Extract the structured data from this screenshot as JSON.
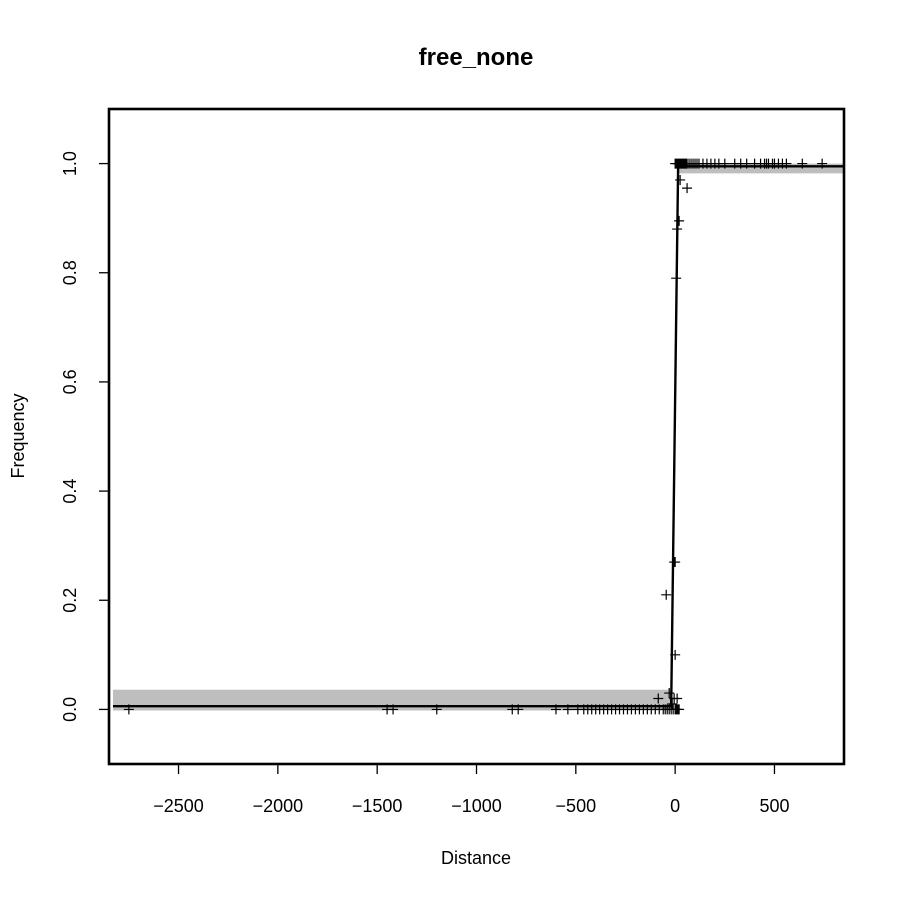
{
  "chart_data": {
    "type": "scatter",
    "title": "free_none",
    "xlabel": "Distance",
    "ylabel": "Frequency",
    "xlim": [
      -2850,
      850
    ],
    "ylim": [
      -0.1,
      1.1
    ],
    "x_ticks": [
      -2500,
      -2000,
      -1500,
      -1000,
      -500,
      0,
      500
    ],
    "x_tick_labels": [
      "−2500",
      "−2000",
      "−1500",
      "−1000",
      "−500",
      "0",
      "500"
    ],
    "y_ticks": [
      0.0,
      0.2,
      0.4,
      0.6,
      0.8,
      1.0
    ],
    "y_tick_labels": [
      "0.0",
      "0.2",
      "0.4",
      "0.6",
      "0.8",
      "1.0"
    ],
    "grid": false,
    "point_marker": "+",
    "points": [
      [
        -2750,
        0.0
      ],
      [
        -1450,
        0.0
      ],
      [
        -1420,
        0.0
      ],
      [
        -1200,
        0.0
      ],
      [
        -820,
        0.0
      ],
      [
        -790,
        0.0
      ],
      [
        -600,
        0.0
      ],
      [
        -540,
        0.0
      ],
      [
        -490,
        0.0
      ],
      [
        -460,
        0.0
      ],
      [
        -440,
        0.0
      ],
      [
        -420,
        0.0
      ],
      [
        -400,
        0.0
      ],
      [
        -380,
        0.0
      ],
      [
        -360,
        0.0
      ],
      [
        -340,
        0.0
      ],
      [
        -320,
        0.0
      ],
      [
        -300,
        0.0
      ],
      [
        -280,
        0.0
      ],
      [
        -260,
        0.0
      ],
      [
        -240,
        0.0
      ],
      [
        -220,
        0.0
      ],
      [
        -200,
        0.0
      ],
      [
        -180,
        0.0
      ],
      [
        -160,
        0.0
      ],
      [
        -140,
        0.0
      ],
      [
        -120,
        0.0
      ],
      [
        -100,
        0.0
      ],
      [
        -80,
        0.0
      ],
      [
        -60,
        0.0
      ],
      [
        -50,
        0.0
      ],
      [
        -40,
        0.0
      ],
      [
        -30,
        0.0
      ],
      [
        -20,
        0.0
      ],
      [
        -10,
        0.0
      ],
      [
        0,
        0.0
      ],
      [
        5,
        0.0
      ],
      [
        10,
        0.0
      ],
      [
        15,
        0.0
      ],
      [
        20,
        0.0
      ],
      [
        -85,
        0.02
      ],
      [
        -30,
        0.03
      ],
      [
        -15,
        0.01
      ],
      [
        -5,
        0.02
      ],
      [
        10,
        0.02
      ],
      [
        -45,
        0.21
      ],
      [
        -5,
        0.27
      ],
      [
        0,
        0.27
      ],
      [
        0,
        0.1
      ],
      [
        5,
        0.79
      ],
      [
        10,
        0.88
      ],
      [
        20,
        0.895
      ],
      [
        25,
        0.97
      ],
      [
        60,
        0.955
      ],
      [
        0,
        1.0
      ],
      [
        5,
        1.0
      ],
      [
        10,
        1.0
      ],
      [
        15,
        1.0
      ],
      [
        20,
        1.0
      ],
      [
        25,
        1.0
      ],
      [
        30,
        1.0
      ],
      [
        35,
        1.0
      ],
      [
        40,
        1.0
      ],
      [
        45,
        1.0
      ],
      [
        50,
        1.0
      ],
      [
        55,
        1.0
      ],
      [
        60,
        1.0
      ],
      [
        70,
        1.0
      ],
      [
        80,
        1.0
      ],
      [
        90,
        1.0
      ],
      [
        100,
        1.0
      ],
      [
        110,
        1.0
      ],
      [
        120,
        1.0
      ],
      [
        140,
        1.0
      ],
      [
        160,
        1.0
      ],
      [
        180,
        1.0
      ],
      [
        200,
        1.0
      ],
      [
        220,
        1.0
      ],
      [
        250,
        1.0
      ],
      [
        300,
        1.0
      ],
      [
        330,
        1.0
      ],
      [
        360,
        1.0
      ],
      [
        400,
        1.0
      ],
      [
        430,
        1.0
      ],
      [
        450,
        1.0
      ],
      [
        460,
        1.0
      ],
      [
        470,
        1.0
      ],
      [
        490,
        1.0
      ],
      [
        500,
        1.0
      ],
      [
        520,
        1.0
      ],
      [
        540,
        1.0
      ],
      [
        560,
        1.0
      ],
      [
        640,
        1.0
      ],
      [
        740,
        1.0
      ]
    ],
    "fit_line": {
      "color": "#000000",
      "points": [
        [
          -2830,
          0.006
        ],
        [
          -20,
          0.006
        ],
        [
          15,
          0.995
        ],
        [
          850,
          0.995
        ]
      ]
    },
    "confidence_band": {
      "color": "#bebebe",
      "upper": [
        [
          -2830,
          0.036
        ],
        [
          -20,
          0.036
        ],
        [
          15,
          1.0
        ],
        [
          850,
          1.0
        ]
      ],
      "lower": [
        [
          -2830,
          -0.002
        ],
        [
          -20,
          -0.002
        ],
        [
          15,
          0.982
        ],
        [
          850,
          0.982
        ]
      ]
    }
  }
}
